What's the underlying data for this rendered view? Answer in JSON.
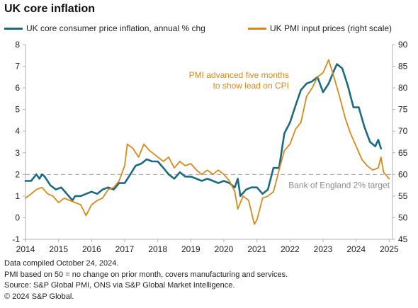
{
  "title": "UK core inflation",
  "colors": {
    "core_cpi": "#1b6a82",
    "pmi": "#d68a1a",
    "target_line": "#a6a6a6",
    "axis": "#b0b0b0"
  },
  "legend": [
    {
      "label": "UK core consumer price inflation, annual % chg",
      "color": "#1b6a82"
    },
    {
      "label": "UK PMI input prices (right scale)",
      "color": "#d68a1a"
    }
  ],
  "annotations": {
    "pmi_lead_line1": "PMI advanced five months",
    "pmi_lead_line2": "to show lead on CPI",
    "target_label": "Bank of England 2% target"
  },
  "footer": [
    "Data compiled October 24, 2024.",
    "PMI based on 50 = no change on prior month, covers manufacturing and services.",
    "Source: S&P Global PMI, ONS via S&P Global Market Intelligence.",
    "© 2024 S&P Global."
  ],
  "chart_data": {
    "type": "line",
    "title": "UK core inflation",
    "x_ticks": [
      "2014",
      "2015",
      "2016",
      "2017",
      "2018",
      "2019",
      "2020",
      "2021",
      "2022",
      "2023",
      "2024",
      "2025"
    ],
    "x_range": [
      2014,
      2025.1
    ],
    "y_left": {
      "range": [
        -1,
        8
      ],
      "ticks": [
        "-1",
        "0",
        "1",
        "2",
        "3",
        "4",
        "5",
        "6",
        "7",
        "8"
      ]
    },
    "y_right": {
      "range": [
        45,
        90
      ],
      "ticks": [
        "45",
        "50",
        "55",
        "60",
        "65",
        "70",
        "75",
        "80",
        "85",
        "90"
      ]
    },
    "reference_line": {
      "value": 2,
      "axis": "left",
      "label": "Bank of England 2% target"
    },
    "grid": false,
    "legend_position": "top",
    "series": [
      {
        "name": "UK core consumer price inflation, annual % chg",
        "axis": "left",
        "points": [
          [
            2014.0,
            1.7
          ],
          [
            2014.17,
            1.7
          ],
          [
            2014.33,
            2.0
          ],
          [
            2014.42,
            1.8
          ],
          [
            2014.5,
            2.0
          ],
          [
            2014.58,
            1.9
          ],
          [
            2014.75,
            1.5
          ],
          [
            2014.92,
            1.3
          ],
          [
            2015.08,
            1.4
          ],
          [
            2015.25,
            1.1
          ],
          [
            2015.42,
            0.8
          ],
          [
            2015.5,
            1.0
          ],
          [
            2015.67,
            1.0
          ],
          [
            2015.83,
            1.1
          ],
          [
            2016.0,
            1.2
          ],
          [
            2016.17,
            1.1
          ],
          [
            2016.33,
            1.3
          ],
          [
            2016.5,
            1.4
          ],
          [
            2016.67,
            1.3
          ],
          [
            2016.83,
            1.6
          ],
          [
            2017.0,
            1.6
          ],
          [
            2017.17,
            2.0
          ],
          [
            2017.33,
            2.4
          ],
          [
            2017.5,
            2.5
          ],
          [
            2017.67,
            2.7
          ],
          [
            2017.83,
            2.6
          ],
          [
            2018.0,
            2.6
          ],
          [
            2018.17,
            2.3
          ],
          [
            2018.33,
            2.0
          ],
          [
            2018.5,
            1.8
          ],
          [
            2018.67,
            2.1
          ],
          [
            2018.83,
            1.9
          ],
          [
            2019.0,
            1.9
          ],
          [
            2019.17,
            1.8
          ],
          [
            2019.33,
            1.7
          ],
          [
            2019.5,
            1.8
          ],
          [
            2019.67,
            1.7
          ],
          [
            2019.83,
            1.6
          ],
          [
            2020.0,
            1.7
          ],
          [
            2020.17,
            1.6
          ],
          [
            2020.33,
            1.4
          ],
          [
            2020.42,
            1.8
          ],
          [
            2020.5,
            1.0
          ],
          [
            2020.67,
            1.3
          ],
          [
            2020.83,
            1.4
          ],
          [
            2021.0,
            1.4
          ],
          [
            2021.17,
            1.1
          ],
          [
            2021.33,
            1.3
          ],
          [
            2021.5,
            2.3
          ],
          [
            2021.67,
            2.3
          ],
          [
            2021.83,
            3.9
          ],
          [
            2022.0,
            4.4
          ],
          [
            2022.17,
            5.2
          ],
          [
            2022.33,
            5.9
          ],
          [
            2022.5,
            6.2
          ],
          [
            2022.67,
            6.3
          ],
          [
            2022.83,
            6.5
          ],
          [
            2023.0,
            5.8
          ],
          [
            2023.17,
            6.2
          ],
          [
            2023.33,
            6.8
          ],
          [
            2023.42,
            7.1
          ],
          [
            2023.58,
            6.9
          ],
          [
            2023.75,
            6.1
          ],
          [
            2023.92,
            5.1
          ],
          [
            2024.08,
            5.1
          ],
          [
            2024.25,
            4.2
          ],
          [
            2024.42,
            3.5
          ],
          [
            2024.58,
            3.3
          ],
          [
            2024.67,
            3.6
          ],
          [
            2024.75,
            3.2
          ]
        ]
      },
      {
        "name": "UK PMI input prices (right scale)",
        "axis": "right",
        "points": [
          [
            2014.0,
            54.5
          ],
          [
            2014.17,
            55.5
          ],
          [
            2014.33,
            56.5
          ],
          [
            2014.5,
            57.0
          ],
          [
            2014.67,
            55.5
          ],
          [
            2014.83,
            55.0
          ],
          [
            2015.0,
            53.5
          ],
          [
            2015.17,
            54.5
          ],
          [
            2015.33,
            54.0
          ],
          [
            2015.5,
            53.5
          ],
          [
            2015.67,
            53.0
          ],
          [
            2015.83,
            50.5
          ],
          [
            2016.0,
            53.0
          ],
          [
            2016.17,
            54.0
          ],
          [
            2016.33,
            54.5
          ],
          [
            2016.5,
            56.5
          ],
          [
            2016.67,
            57.0
          ],
          [
            2016.83,
            58.5
          ],
          [
            2017.0,
            62.0
          ],
          [
            2017.08,
            67.0
          ],
          [
            2017.25,
            66.0
          ],
          [
            2017.42,
            64.0
          ],
          [
            2017.58,
            67.0
          ],
          [
            2017.75,
            65.5
          ],
          [
            2017.92,
            64.5
          ],
          [
            2018.17,
            63.0
          ],
          [
            2018.33,
            64.0
          ],
          [
            2018.5,
            61.5
          ],
          [
            2018.67,
            63.0
          ],
          [
            2018.83,
            62.0
          ],
          [
            2019.0,
            62.5
          ],
          [
            2019.17,
            61.0
          ],
          [
            2019.33,
            60.0
          ],
          [
            2019.5,
            61.0
          ],
          [
            2019.67,
            60.0
          ],
          [
            2019.83,
            61.0
          ],
          [
            2020.0,
            60.0
          ],
          [
            2020.17,
            58.5
          ],
          [
            2020.33,
            56.0
          ],
          [
            2020.42,
            52.0
          ],
          [
            2020.58,
            55.0
          ],
          [
            2020.75,
            54.0
          ],
          [
            2020.92,
            48.5
          ],
          [
            2021.0,
            49.5
          ],
          [
            2021.17,
            54.5
          ],
          [
            2021.33,
            55.0
          ],
          [
            2021.5,
            56.0
          ],
          [
            2021.67,
            61.0
          ],
          [
            2021.83,
            65.5
          ],
          [
            2022.0,
            67.0
          ],
          [
            2022.17,
            70.5
          ],
          [
            2022.33,
            72.0
          ],
          [
            2022.5,
            78.0
          ],
          [
            2022.67,
            80.0
          ],
          [
            2022.83,
            82.5
          ],
          [
            2023.0,
            83.5
          ],
          [
            2023.17,
            86.5
          ],
          [
            2023.33,
            82.5
          ],
          [
            2023.5,
            78.0
          ],
          [
            2023.67,
            73.0
          ],
          [
            2023.83,
            69.5
          ],
          [
            2024.0,
            66.5
          ],
          [
            2024.17,
            63.5
          ],
          [
            2024.33,
            62.0
          ],
          [
            2024.5,
            61.0
          ],
          [
            2024.67,
            61.5
          ],
          [
            2024.75,
            64.0
          ],
          [
            2024.83,
            60.5
          ],
          [
            2025.0,
            59.0
          ]
        ]
      }
    ]
  }
}
